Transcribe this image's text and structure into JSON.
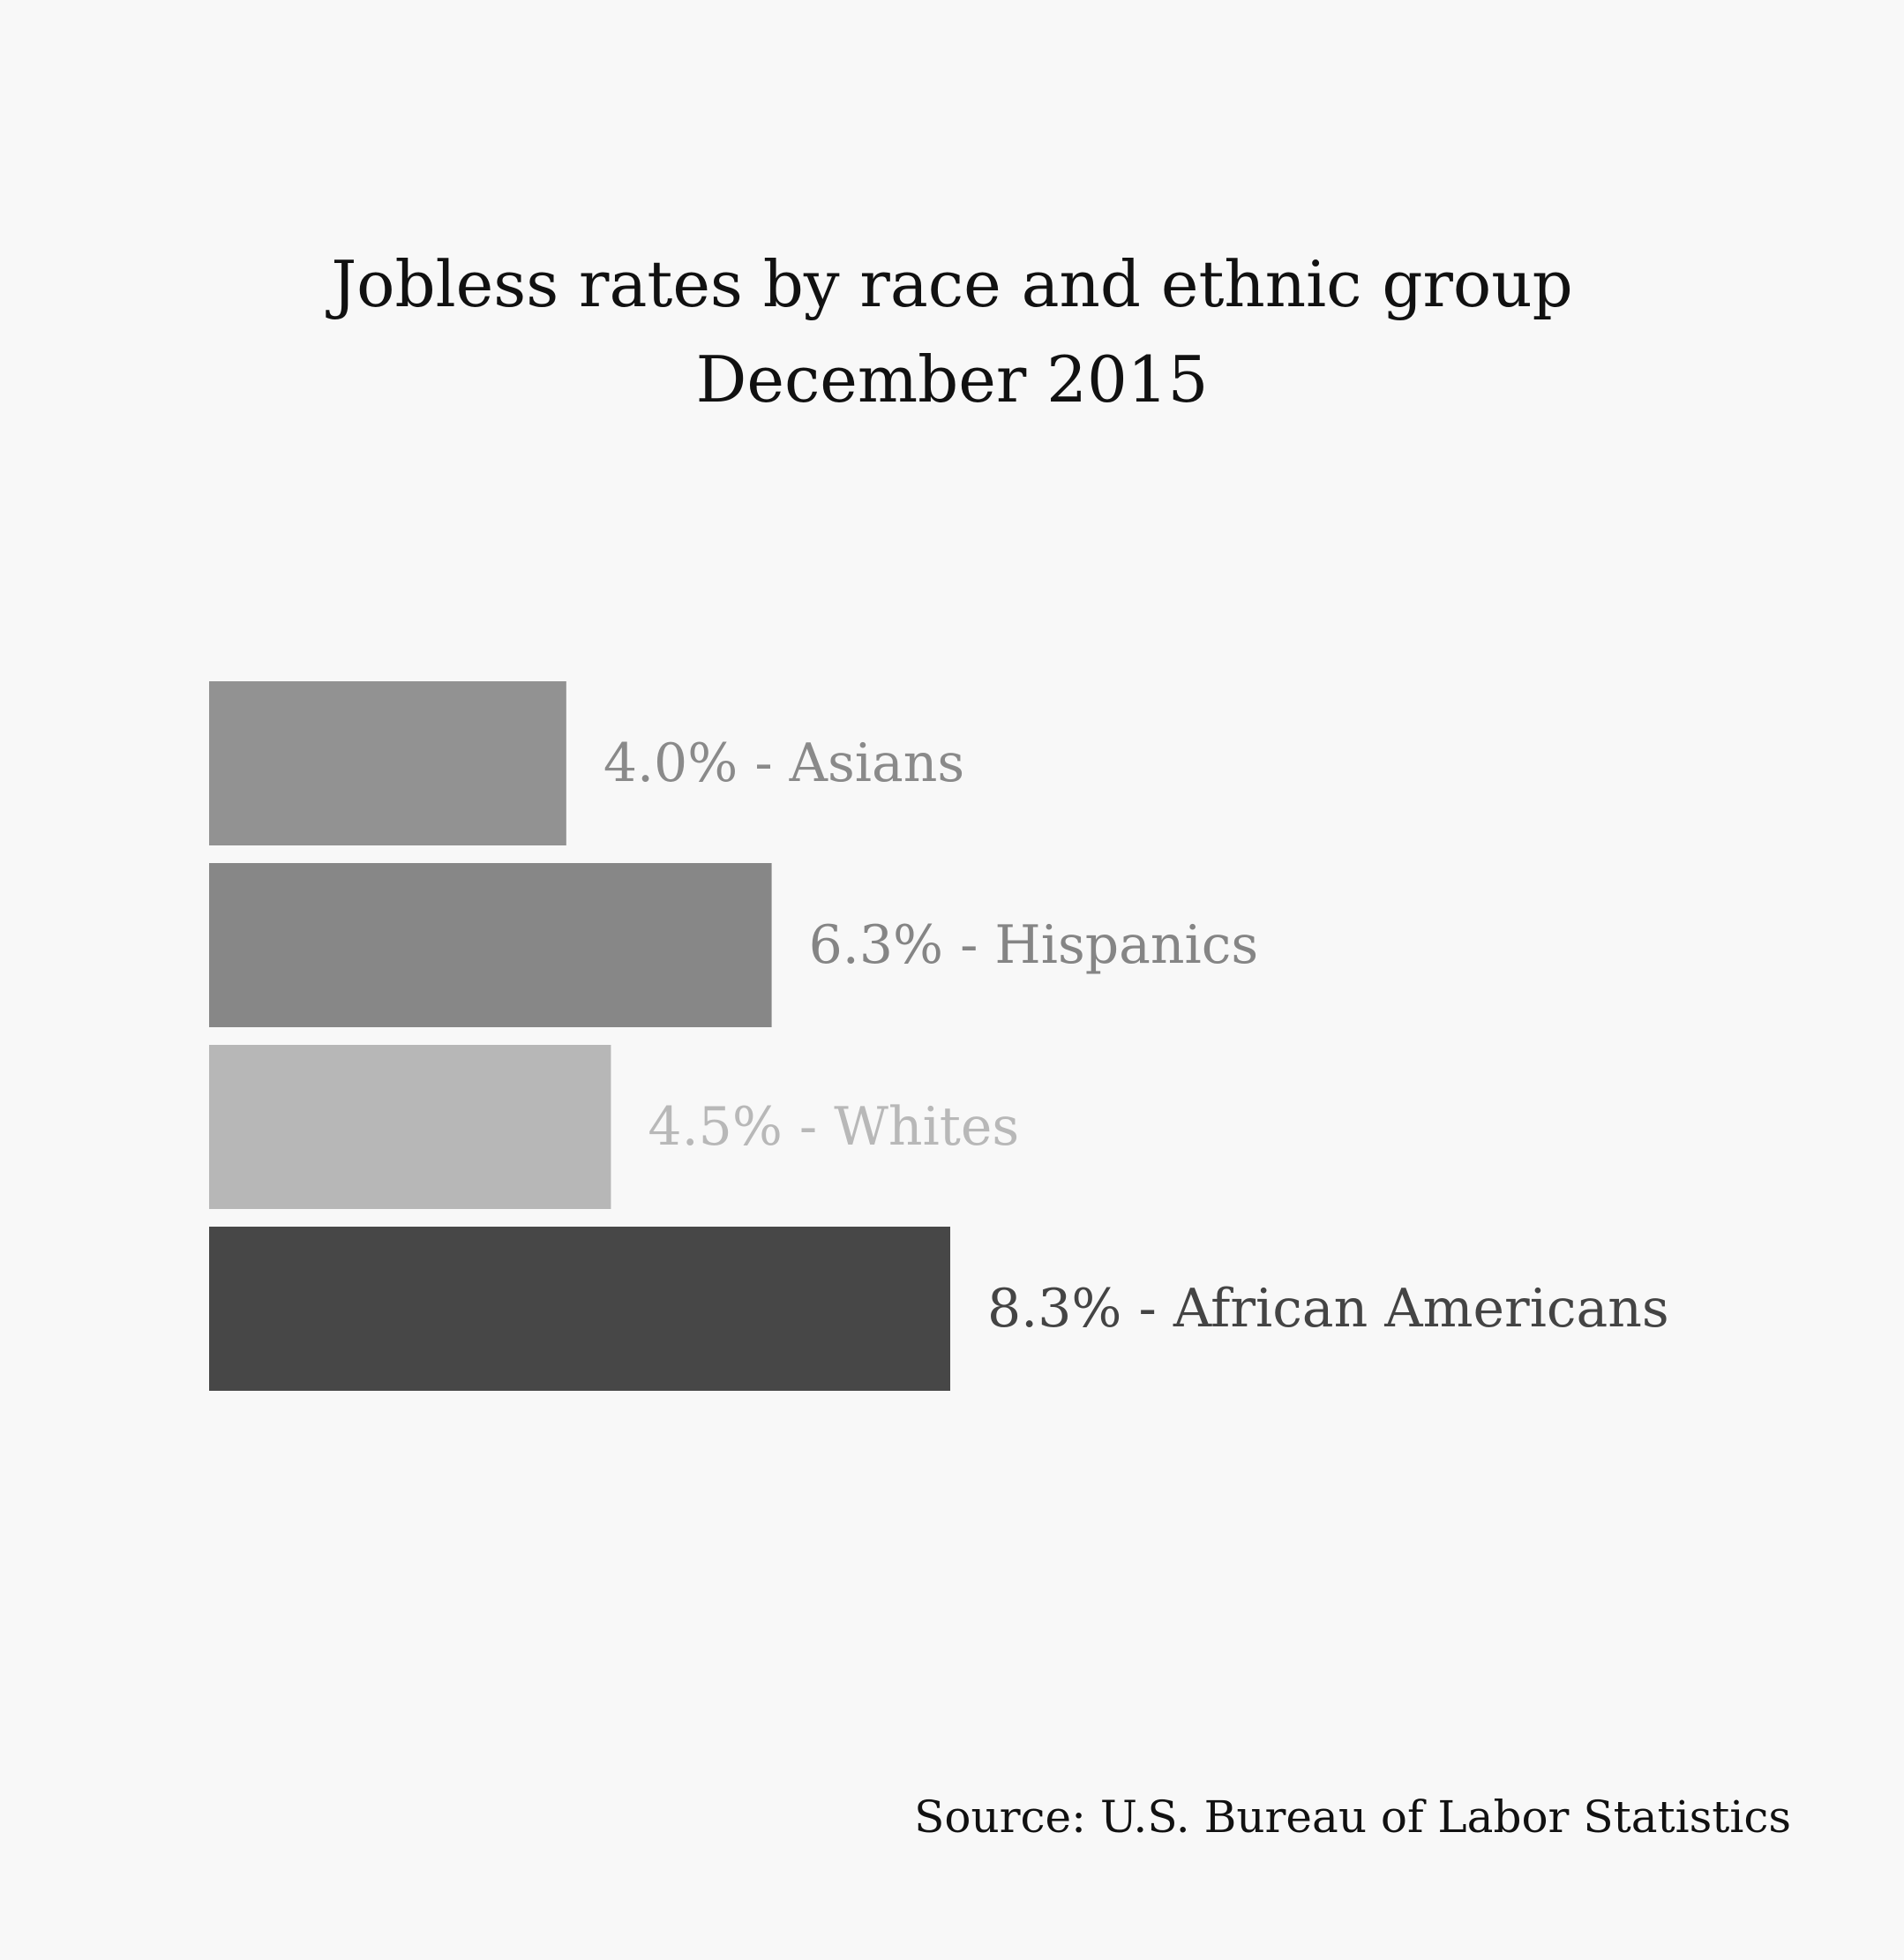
{
  "chart_data": {
    "type": "bar",
    "orientation": "horizontal",
    "title": "Jobless rates by race and ethnic group",
    "subtitle": "December 2015",
    "unit": "%",
    "categories": [
      "Asians",
      "Hispanics",
      "Whites",
      "African Americans"
    ],
    "values": [
      4.0,
      6.3,
      4.5,
      8.3
    ],
    "labels": [
      "4.0% - Asians",
      "6.3% - Hispanics",
      "4.5% - Whites",
      "8.3% - African Americans"
    ],
    "bar_colors": [
      "#929292",
      "#878787",
      "#b7b7b7",
      "#474747"
    ],
    "label_colors": [
      "#8a8a8a",
      "#858585",
      "#b8b8b8",
      "#444444"
    ],
    "xlim": [
      0,
      8.3
    ],
    "grid": false,
    "legend": "none",
    "source": "Source: U.S. Bureau of Labor Statistics"
  }
}
